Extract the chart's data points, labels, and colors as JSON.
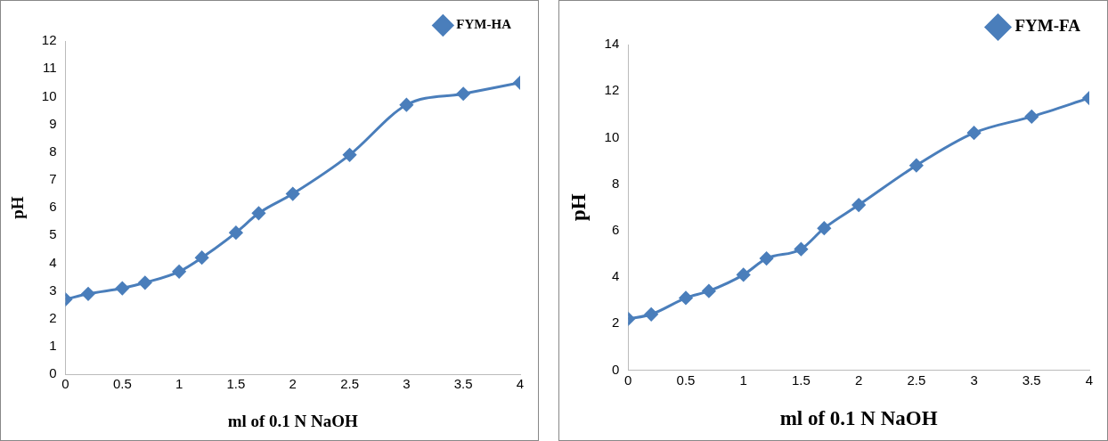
{
  "chart_data": [
    {
      "type": "line",
      "xlabel": "ml of 0.1 N NaOH",
      "ylabel": "pH",
      "x": [
        0,
        0.2,
        0.5,
        0.7,
        1,
        1.2,
        1.5,
        1.7,
        2,
        2.5,
        3,
        3.5,
        4
      ],
      "series": [
        {
          "name": "FYM-HA",
          "color": "#4a7ebb",
          "values": [
            2.7,
            2.9,
            3.1,
            3.3,
            3.7,
            4.2,
            5.1,
            5.8,
            6.5,
            7.9,
            9.7,
            10.1,
            10.5
          ]
        }
      ],
      "xlim": [
        0,
        4
      ],
      "xticks": [
        0,
        0.5,
        1,
        1.5,
        2,
        2.5,
        3,
        3.5,
        4
      ],
      "ylim": [
        0,
        12
      ],
      "yticks": [
        0,
        1,
        2,
        3,
        4,
        5,
        6,
        7,
        8,
        9,
        10,
        11,
        12
      ],
      "grid": false,
      "legend": "top right",
      "marker": "diamond",
      "line_style": "solid"
    },
    {
      "type": "line",
      "xlabel": "ml of 0.1 N NaOH",
      "ylabel": "pH",
      "x": [
        0,
        0.2,
        0.5,
        0.7,
        1,
        1.2,
        1.5,
        1.7,
        2,
        2.5,
        3,
        3.5,
        4
      ],
      "series": [
        {
          "name": "FYM-FA",
          "color": "#4a7ebb",
          "values": [
            2.2,
            2.4,
            3.1,
            3.4,
            4.1,
            4.8,
            5.2,
            6.1,
            7.1,
            8.8,
            10.2,
            10.9,
            11.7
          ]
        }
      ],
      "xlim": [
        0,
        4
      ],
      "xticks": [
        0,
        0.5,
        1,
        1.5,
        2,
        2.5,
        3,
        3.5,
        4
      ],
      "ylim": [
        0,
        14
      ],
      "yticks": [
        0,
        2,
        4,
        6,
        8,
        10,
        12,
        14
      ],
      "grid": false,
      "legend": "top right",
      "marker": "diamond",
      "line_style": "solid"
    }
  ]
}
